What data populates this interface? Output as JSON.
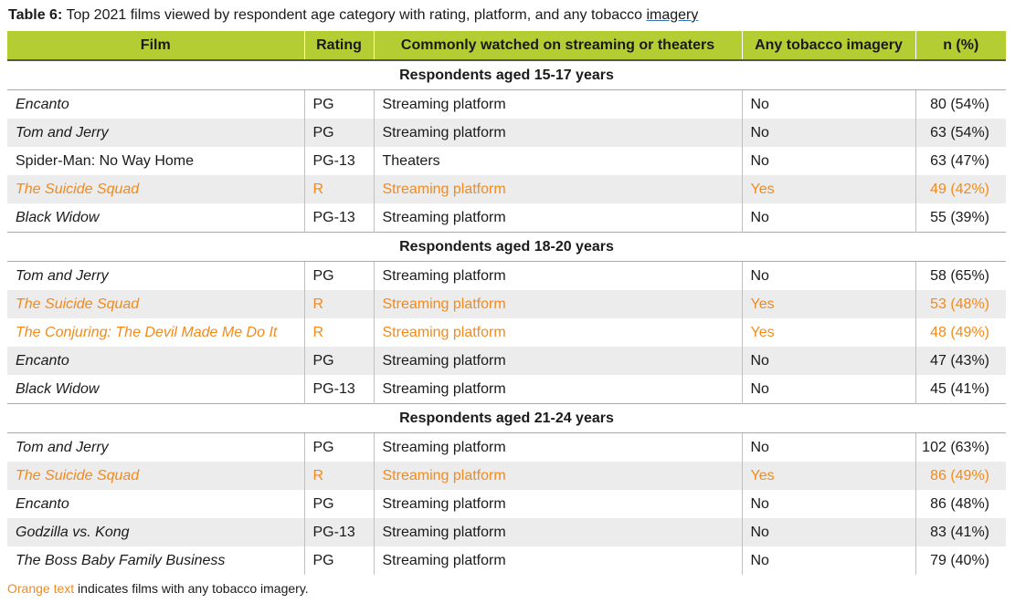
{
  "caption": {
    "label": "Table 6:",
    "text": " Top 2021 films viewed by respondent age category with rating, platform, and any tobacco ",
    "underlined": "imagery"
  },
  "colors": {
    "header_bg": "#b3cd32",
    "tobacco_text": "#f28a1c",
    "stripe": "#ececec"
  },
  "headers": [
    "Film",
    "Rating",
    "Commonly watched on streaming or theaters",
    "Any tobacco imagery",
    "n (%)"
  ],
  "groups": [
    {
      "title": "Respondents aged 15-17 years",
      "rows": [
        {
          "film": "Encanto",
          "rating": "PG",
          "platform": "Streaming platform",
          "tobacco": "No",
          "n": "80 (54%)"
        },
        {
          "film": "Tom and Jerry",
          "rating": "PG",
          "platform": "Streaming platform",
          "tobacco": "No",
          "n": "63 (54%)"
        },
        {
          "film": "Spider-Man: No Way Home",
          "rating": "PG-13",
          "platform": "Theaters",
          "tobacco": "No",
          "n": "63 (47%)"
        },
        {
          "film": "The Suicide Squad",
          "rating": "R",
          "platform": "Streaming platform",
          "tobacco": "Yes",
          "n": "49 (42%)"
        },
        {
          "film": "Black Widow",
          "rating": "PG-13",
          "platform": "Streaming platform",
          "tobacco": "No",
          "n": "55 (39%)"
        }
      ]
    },
    {
      "title": "Respondents aged 18-20 years",
      "rows": [
        {
          "film": "Tom and Jerry",
          "rating": "PG",
          "platform": "Streaming platform",
          "tobacco": "No",
          "n": "58 (65%)"
        },
        {
          "film": "The Suicide Squad",
          "rating": "R",
          "platform": "Streaming platform",
          "tobacco": "Yes",
          "n": "53 (48%)"
        },
        {
          "film": "The Conjuring: The Devil Made Me Do It",
          "rating": "R",
          "platform": "Streaming platform",
          "tobacco": "Yes",
          "n": "48 (49%)"
        },
        {
          "film": "Encanto",
          "rating": "PG",
          "platform": "Streaming platform",
          "tobacco": "No",
          "n": "47 (43%)"
        },
        {
          "film": "Black Widow",
          "rating": "PG-13",
          "platform": "Streaming platform",
          "tobacco": "No",
          "n": "45 (41%)"
        }
      ]
    },
    {
      "title": "Respondents aged 21-24 years",
      "rows": [
        {
          "film": "Tom and Jerry",
          "rating": "PG",
          "platform": "Streaming platform",
          "tobacco": "No",
          "n": "102 (63%)"
        },
        {
          "film": "The Suicide Squad",
          "rating": "R",
          "platform": "Streaming platform",
          "tobacco": "Yes",
          "n": "86 (49%)"
        },
        {
          "film": "Encanto",
          "rating": "PG",
          "platform": "Streaming platform",
          "tobacco": "No",
          "n": "86 (48%)"
        },
        {
          "film": "Godzilla vs. Kong",
          "rating": "PG-13",
          "platform": "Streaming platform",
          "tobacco": "No",
          "n": "83 (41%)"
        },
        {
          "film": "The Boss Baby Family Business",
          "rating": "PG",
          "platform": "Streaming platform",
          "tobacco": "No",
          "n": "79 (40%)"
        }
      ]
    }
  ],
  "footnote": {
    "orange_part": "Orange text",
    "rest": " indicates films with any tobacco imagery."
  }
}
